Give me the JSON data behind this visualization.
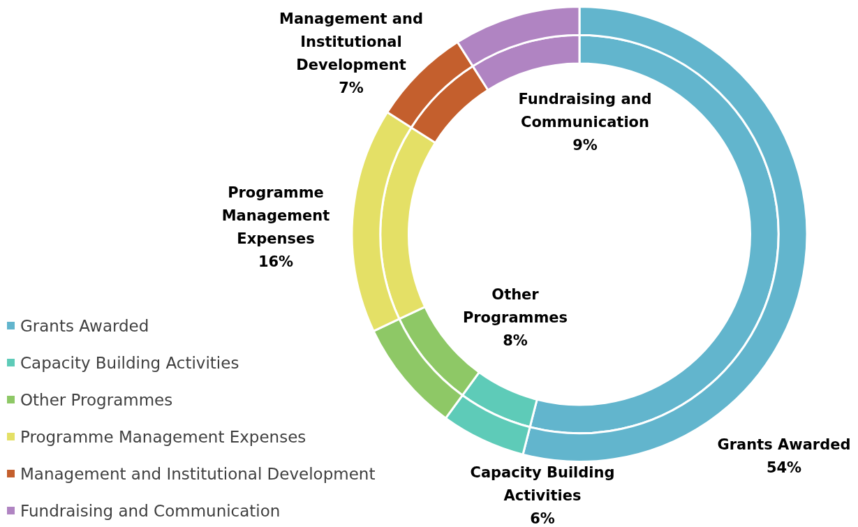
{
  "chart_data": {
    "type": "donut",
    "categories": [
      "Grants Awarded",
      "Capacity Building Activities",
      "Other Programmes",
      "Programme Management Expenses",
      "Management and Institutional Development",
      "Fundraising and Communication"
    ],
    "colors": [
      "#62b5cd",
      "#5ecbb8",
      "#8ec866",
      "#e4e066",
      "#c45f2d",
      "#b084c2"
    ],
    "series": [
      {
        "values": [
          54,
          6,
          8,
          16,
          7,
          9
        ]
      },
      {
        "values": [
          54,
          6,
          8,
          16,
          7,
          9
        ]
      }
    ],
    "value_labels": [
      "54%",
      "6%",
      "8%",
      "16%",
      "7%",
      "9%"
    ],
    "legend": "bottom left"
  }
}
